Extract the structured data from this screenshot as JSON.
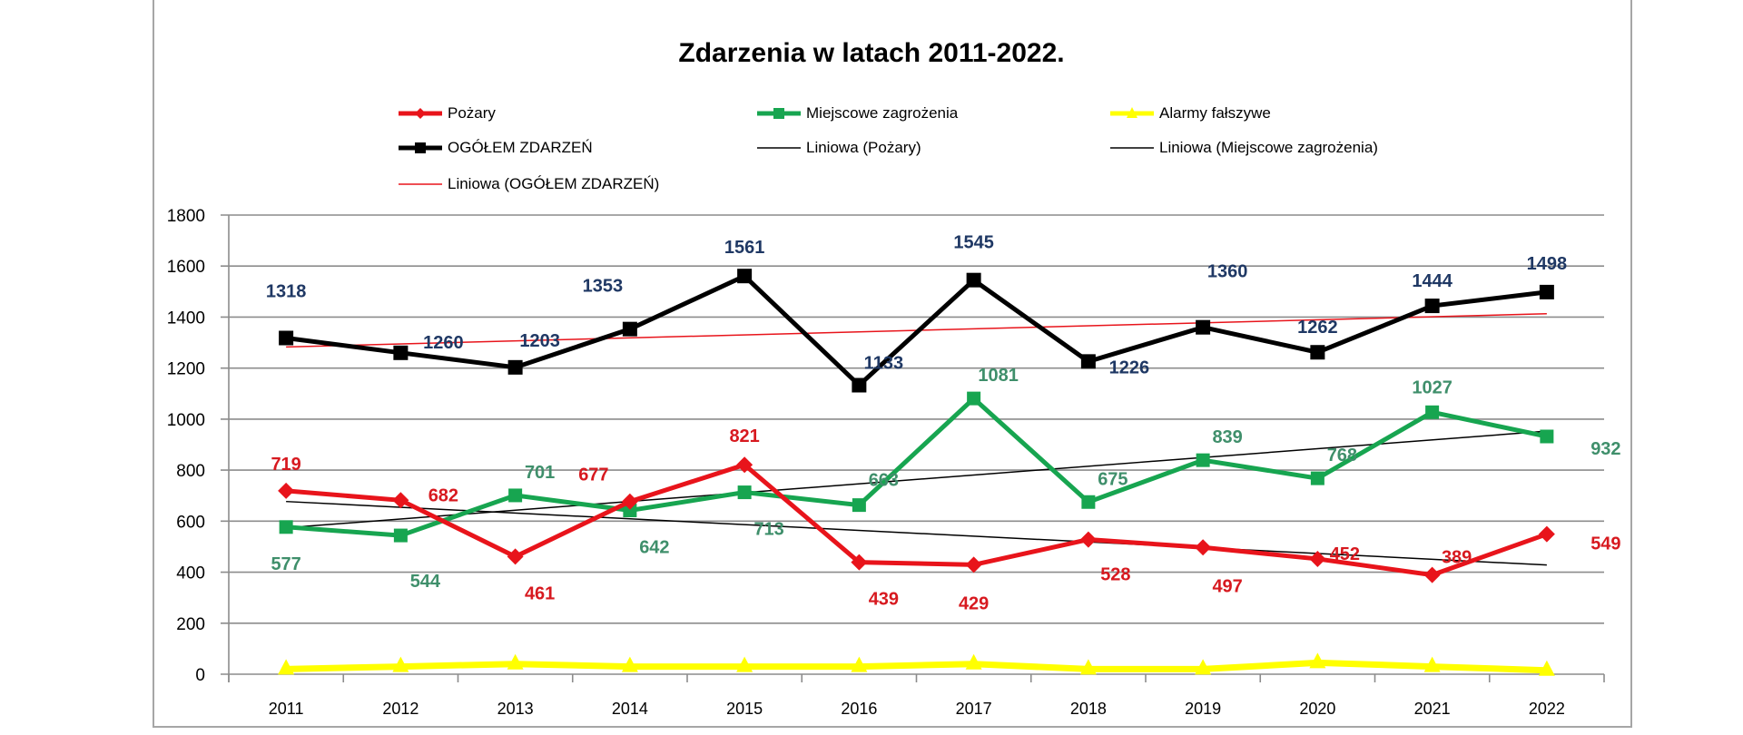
{
  "chart_data": {
    "type": "line",
    "title": "Zdarzenia w latach 2011-2022.",
    "xlabel": "",
    "ylabel": "",
    "ylim": [
      0,
      1800
    ],
    "yticks": [
      0,
      200,
      400,
      600,
      800,
      1000,
      1200,
      1400,
      1600,
      1800
    ],
    "grid": true,
    "legend_position": "top",
    "categories": [
      "2011",
      "2012",
      "2013",
      "2014",
      "2015",
      "2016",
      "2017",
      "2018",
      "2019",
      "2020",
      "2021",
      "2022"
    ],
    "series": [
      {
        "name": "Pożary",
        "color": "#e8141b",
        "marker": "diamond",
        "label_color": "#d7191f",
        "values": [
          719,
          682,
          461,
          677,
          821,
          439,
          429,
          528,
          497,
          452,
          389,
          549
        ],
        "labels_shown": true
      },
      {
        "name": "Miejscowe zagrożenia",
        "color": "#17a550",
        "marker": "square",
        "label_color": "#3f8f6b",
        "values": [
          577,
          544,
          701,
          642,
          713,
          663,
          1081,
          675,
          839,
          768,
          1027,
          932
        ],
        "labels_shown": true
      },
      {
        "name": "Alarmy fałszywe",
        "color": "#ffff00",
        "marker": "triangle",
        "values": [
          20,
          30,
          40,
          30,
          30,
          30,
          40,
          20,
          20,
          45,
          30,
          15
        ],
        "labels_shown": false,
        "values_estimated": true
      },
      {
        "name": "OGÓŁEM ZDARZEŃ",
        "color": "#000000",
        "marker": "square",
        "label_color": "#1f3864",
        "values": [
          1318,
          1260,
          1203,
          1353,
          1561,
          1133,
          1545,
          1226,
          1360,
          1262,
          1444,
          1498
        ],
        "labels_shown": true
      }
    ],
    "trendlines": [
      {
        "name": "Liniowa (Pożary)",
        "color": "#000000",
        "of": "Pożary",
        "start": 677,
        "end": 428
      },
      {
        "name": "Liniowa (Miejscowe zagrożenia)",
        "color": "#000000",
        "of": "Miejscowe zagrożenia",
        "start": 574,
        "end": 953
      },
      {
        "name": "Liniowa (OGÓŁEM ZDARZEŃ)",
        "color": "#e8141b",
        "of": "OGÓŁEM ZDARZEŃ",
        "start": 1283,
        "end": 1413
      }
    ]
  },
  "legend": {
    "items": [
      {
        "label": "Pożary"
      },
      {
        "label": "Miejscowe zagrożenia"
      },
      {
        "label": "Alarmy fałszywe"
      },
      {
        "label": "OGÓŁEM ZDARZEŃ"
      },
      {
        "label": "Liniowa (Pożary)"
      },
      {
        "label": "Liniowa (Miejscowe zagrożenia)"
      },
      {
        "label": "Liniowa (OGÓŁEM ZDARZEŃ)"
      }
    ]
  },
  "colors": {
    "frame_border": "#a6a6a6",
    "gridline": "#8c8c8c",
    "total_label": "#1f3864"
  }
}
